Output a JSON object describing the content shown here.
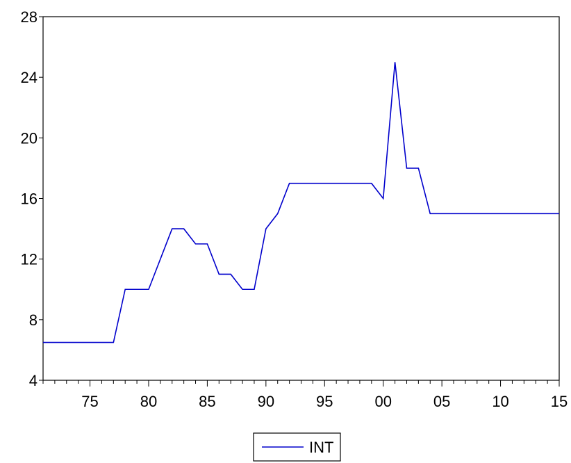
{
  "chart_data": {
    "type": "line",
    "title": "",
    "xlabel": "",
    "ylabel": "",
    "x": [
      "1971",
      "1972",
      "1973",
      "1974",
      "1975",
      "1976",
      "1977",
      "1978",
      "1979",
      "1980",
      "1981",
      "1982",
      "1983",
      "1984",
      "1985",
      "1986",
      "1987",
      "1988",
      "1989",
      "1990",
      "1991",
      "1992",
      "1993",
      "1994",
      "1995",
      "1996",
      "1997",
      "1998",
      "1999",
      "2000",
      "2001",
      "2002",
      "2003",
      "2004",
      "2005",
      "2006",
      "2007",
      "2008",
      "2009",
      "2010",
      "2011",
      "2012",
      "2013",
      "2014",
      "2015"
    ],
    "series": [
      {
        "name": "INT",
        "color": "#0000cc",
        "values": [
          6.5,
          6.5,
          6.5,
          6.5,
          6.5,
          6.5,
          6.5,
          10,
          10,
          10,
          12,
          14,
          14,
          13,
          13,
          11,
          11,
          10,
          10,
          14,
          15,
          17,
          17,
          17,
          17,
          17,
          17,
          17,
          17,
          16,
          25,
          18,
          18,
          15,
          15,
          15,
          15,
          15,
          15,
          15,
          15,
          15,
          15,
          15,
          15
        ]
      }
    ],
    "xlim": [
      1971,
      2015
    ],
    "ylim": [
      4,
      28
    ],
    "y_ticks": [
      "4",
      "8",
      "12",
      "16",
      "20",
      "24",
      "28"
    ],
    "x_tick_labels": [
      {
        "year": 1975,
        "label": "75"
      },
      {
        "year": 1980,
        "label": "80"
      },
      {
        "year": 1985,
        "label": "85"
      },
      {
        "year": 1990,
        "label": "90"
      },
      {
        "year": 1995,
        "label": "95"
      },
      {
        "year": 2000,
        "label": "00"
      },
      {
        "year": 2005,
        "label": "05"
      },
      {
        "year": 2010,
        "label": "10"
      },
      {
        "year": 2015,
        "label": "15"
      }
    ],
    "grid": false,
    "legend_position": "bottom-center"
  }
}
